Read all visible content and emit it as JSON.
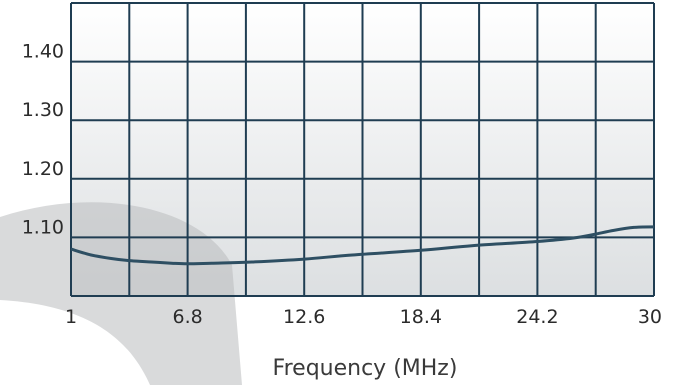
{
  "chart_data": {
    "type": "line",
    "xlabel": "Frequency (MHz)",
    "ylabel": "",
    "title": "",
    "x_ticks": [
      "1",
      "6.8",
      "12.6",
      "18.4",
      "24.2",
      "30"
    ],
    "y_ticks": [
      "1.10",
      "1.20",
      "1.30",
      "1.40"
    ],
    "xlim": [
      1,
      30
    ],
    "ylim": [
      1.0,
      1.5
    ],
    "grid": true,
    "series": [
      {
        "x": [
          1,
          2,
          3,
          4,
          5,
          6,
          6.8,
          8,
          10,
          12.6,
          15,
          18.4,
          21,
          24.2,
          26,
          27,
          28,
          29,
          30
        ],
        "y": [
          1.08,
          1.07,
          1.064,
          1.06,
          1.058,
          1.056,
          1.055,
          1.056,
          1.058,
          1.063,
          1.07,
          1.078,
          1.086,
          1.093,
          1.099,
          1.105,
          1.112,
          1.117,
          1.118
        ]
      }
    ],
    "colors": {
      "line": "#2e4f63",
      "grid": "#1f3d52",
      "plot_top": "#ffffff",
      "plot_bottom": "#dcdfe1",
      "watermark": "#b9bcbe"
    }
  }
}
